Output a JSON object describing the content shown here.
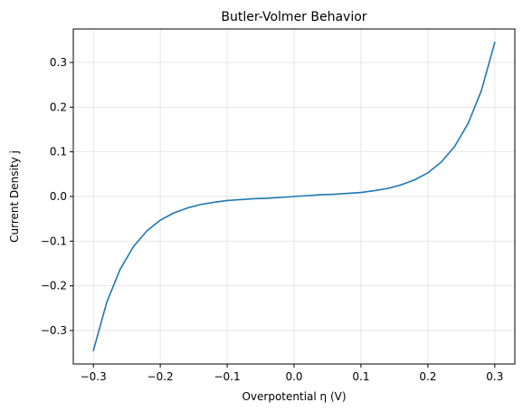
{
  "chart_data": {
    "type": "line",
    "title": "Butler-Volmer Behavior",
    "xlabel": "Overpotential η (V)",
    "ylabel": "Current Density j",
    "xlim": [
      -0.33,
      0.33
    ],
    "ylim": [
      -0.375,
      0.375
    ],
    "grid": true,
    "xticks": [
      -0.3,
      -0.2,
      -0.1,
      0.0,
      0.1,
      0.2,
      0.3
    ],
    "xtick_labels": [
      "−0.3",
      "−0.2",
      "−0.1",
      "0.0",
      "0.1",
      "0.2",
      "0.3"
    ],
    "yticks": [
      -0.3,
      -0.2,
      -0.1,
      0.0,
      0.1,
      0.2,
      0.3
    ],
    "ytick_labels": [
      "−0.3",
      "−0.2",
      "−0.1",
      "0.0",
      "0.1",
      "0.2",
      "0.3"
    ],
    "series": [
      {
        "color": "#1f77b4",
        "x": [
          -0.3,
          -0.28,
          -0.26,
          -0.24,
          -0.22,
          -0.2,
          -0.18,
          -0.16,
          -0.14,
          -0.12,
          -0.1,
          -0.08,
          -0.06,
          -0.04,
          -0.02,
          0.0,
          0.02,
          0.04,
          0.06,
          0.08,
          0.1,
          0.12,
          0.14,
          0.16,
          0.18,
          0.2,
          0.22,
          0.24,
          0.26,
          0.28,
          0.3
        ],
        "y": [
          -0.345,
          -0.237,
          -0.163,
          -0.112,
          -0.077,
          -0.053,
          -0.037,
          -0.026,
          -0.018,
          -0.013,
          -0.009,
          -0.007,
          -0.005,
          -0.004,
          -0.002,
          0.0,
          0.002,
          0.004,
          0.005,
          0.007,
          0.009,
          0.013,
          0.018,
          0.026,
          0.037,
          0.053,
          0.077,
          0.112,
          0.163,
          0.237,
          0.345
        ]
      }
    ]
  },
  "colors": {
    "line": "#1f77b4",
    "grid": "#e6e6e6",
    "axis": "#000000",
    "background": "#ffffff"
  }
}
